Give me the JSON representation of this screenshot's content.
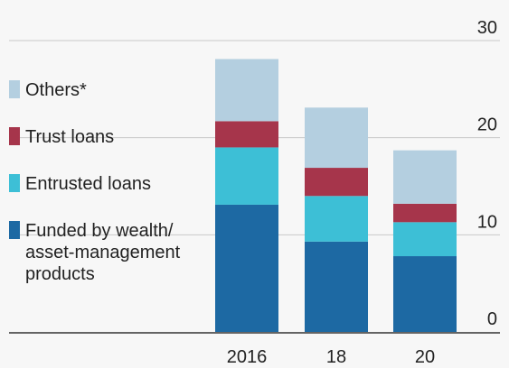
{
  "chart_data": {
    "type": "stacked_bar",
    "categories": [
      "2016",
      "18",
      "20"
    ],
    "series": [
      {
        "name": "Funded by wealth/ asset-management products",
        "color": "#1d69a3",
        "values": [
          13.1,
          9.3,
          7.8
        ]
      },
      {
        "name": "Entrusted loans",
        "color": "#3dbfd6",
        "values": [
          5.9,
          4.7,
          3.5
        ]
      },
      {
        "name": "Trust loans",
        "color": "#a6354b",
        "values": [
          2.7,
          2.9,
          1.9
        ]
      },
      {
        "name": "Others*",
        "color": "#b4cfe0",
        "values": [
          6.4,
          6.2,
          5.5
        ]
      }
    ],
    "ylim": [
      0,
      30
    ],
    "yticks": [
      0,
      10,
      20,
      30
    ],
    "grid": true,
    "legend": "left"
  }
}
